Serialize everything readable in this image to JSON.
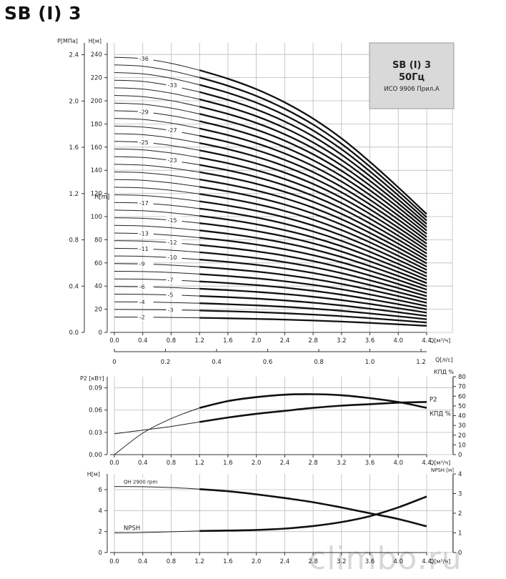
{
  "page": {
    "title": "SB (I) 3",
    "watermark": "climbo.ru"
  },
  "chart_data": [
    {
      "type": "line",
      "id": "head",
      "x": [
        0.0,
        0.4,
        0.8,
        1.2,
        1.6,
        2.0,
        2.4,
        2.8,
        3.2,
        3.6,
        4.0,
        4.4
      ],
      "x_ticks": [
        "0.0",
        "0.4",
        "0.8",
        "1.2",
        "1.6",
        "2.0",
        "2.4",
        "2.8",
        "3.2",
        "3.6",
        "4.0",
        "4.4"
      ],
      "x_unit": "Q[м³/ч]",
      "x2_ticks": [
        "0",
        "0.2",
        "0.4",
        "0.6",
        "0.8",
        "1.0",
        "1.2"
      ],
      "x2_unit": "Q[л/с]",
      "ylabel": "H[м]",
      "ylabel_mid": "H[m]",
      "y_ticks": [
        "0",
        "20",
        "40",
        "60",
        "80",
        "100",
        "120",
        "140",
        "160",
        "180",
        "200",
        "220",
        "240"
      ],
      "ylim": [
        0,
        250
      ],
      "y2label": "P[МПа]",
      "y2_ticks": [
        "0.0",
        "0.4",
        "0.8",
        "1.2",
        "1.6",
        "2.0",
        "2.4"
      ],
      "shutoff_head_per_stage": 6.6,
      "head_shape": [
        1.0,
        0.995,
        0.978,
        0.953,
        0.922,
        0.884,
        0.836,
        0.777,
        0.705,
        0.62,
        0.527,
        0.43
      ],
      "stages": [
        2,
        3,
        4,
        5,
        6,
        7,
        8,
        9,
        10,
        11,
        12,
        13,
        14,
        15,
        16,
        17,
        18,
        19,
        20,
        21,
        22,
        23,
        24,
        25,
        26,
        27,
        28,
        29,
        30,
        31,
        32,
        33,
        34,
        35,
        36
      ],
      "labels": [
        "-2",
        "-3",
        "-4",
        "-5",
        "-6",
        "-7",
        "-9",
        "-10",
        "-11",
        "-12",
        "-13",
        "-15",
        "-17",
        "-23",
        "-25",
        "-27",
        "-29",
        "-33",
        "-36"
      ],
      "label_stages": [
        2,
        3,
        4,
        5,
        6,
        7,
        9,
        10,
        11,
        12,
        13,
        15,
        17,
        23,
        25,
        27,
        29,
        33,
        36
      ],
      "grid": true,
      "legend": {
        "title": "SB (I) 3",
        "freq": "50Гц",
        "standard": "ИСО 9906 Прил.A"
      }
    },
    {
      "type": "line",
      "id": "power_efficiency",
      "x": [
        0.0,
        0.4,
        0.8,
        1.2,
        1.6,
        2.0,
        2.4,
        2.8,
        3.2,
        3.6,
        4.0,
        4.4
      ],
      "x_ticks": [
        "0.0",
        "0.4",
        "0.8",
        "1.2",
        "1.6",
        "2.0",
        "2.4",
        "2.8",
        "3.2",
        "3.6",
        "4.0",
        "4.4"
      ],
      "x_unit": "Q[м³/ч]",
      "ylabel": "P2 [кВт]",
      "y_ticks": [
        "0.00",
        "0.03",
        "0.06",
        "0.09"
      ],
      "ylim": [
        0,
        0.105
      ],
      "y2label": "КПД %",
      "y2_ticks": [
        "0",
        "10",
        "20",
        "30",
        "40",
        "50",
        "60",
        "70",
        "80"
      ],
      "y2lim": [
        0,
        80
      ],
      "series": [
        {
          "name": "P2",
          "axis": "left",
          "values": [
            0.028,
            0.033,
            0.038,
            0.044,
            0.05,
            0.055,
            0.059,
            0.063,
            0.066,
            0.068,
            0.07,
            0.071
          ]
        },
        {
          "name": "КПД %",
          "axis": "right",
          "values": [
            0,
            22,
            37,
            48,
            55,
            59,
            61.5,
            62,
            61,
            58,
            54,
            48
          ]
        }
      ],
      "grid": true
    },
    {
      "type": "line",
      "id": "npsh",
      "x": [
        0.0,
        0.4,
        0.8,
        1.2,
        1.6,
        2.0,
        2.4,
        2.8,
        3.2,
        3.6,
        4.0,
        4.4
      ],
      "x_ticks": [
        "0.0",
        "0.4",
        "0.8",
        "1.2",
        "1.6",
        "2.0",
        "2.4",
        "2.8",
        "3.2",
        "3.6",
        "4.0",
        "4.4"
      ],
      "x_unit": "Q[м³/ч]",
      "ylabel": "H[м]",
      "y_ticks": [
        "0",
        "2",
        "4",
        "6"
      ],
      "ylim": [
        0,
        7.5
      ],
      "y2label": "NPSH [м]",
      "y2_ticks": [
        "0",
        "1",
        "2",
        "3",
        "4"
      ],
      "y2lim": [
        0,
        4
      ],
      "series": [
        {
          "name": "QH 2900 rpm",
          "axis": "left",
          "values": [
            6.3,
            6.28,
            6.2,
            6.05,
            5.85,
            5.55,
            5.2,
            4.8,
            4.3,
            3.75,
            3.2,
            2.5
          ]
        },
        {
          "name": "NPSH",
          "axis": "right",
          "values": [
            1.0,
            1.02,
            1.06,
            1.1,
            1.12,
            1.15,
            1.22,
            1.35,
            1.55,
            1.85,
            2.3,
            2.85
          ]
        }
      ],
      "grid": true
    }
  ]
}
